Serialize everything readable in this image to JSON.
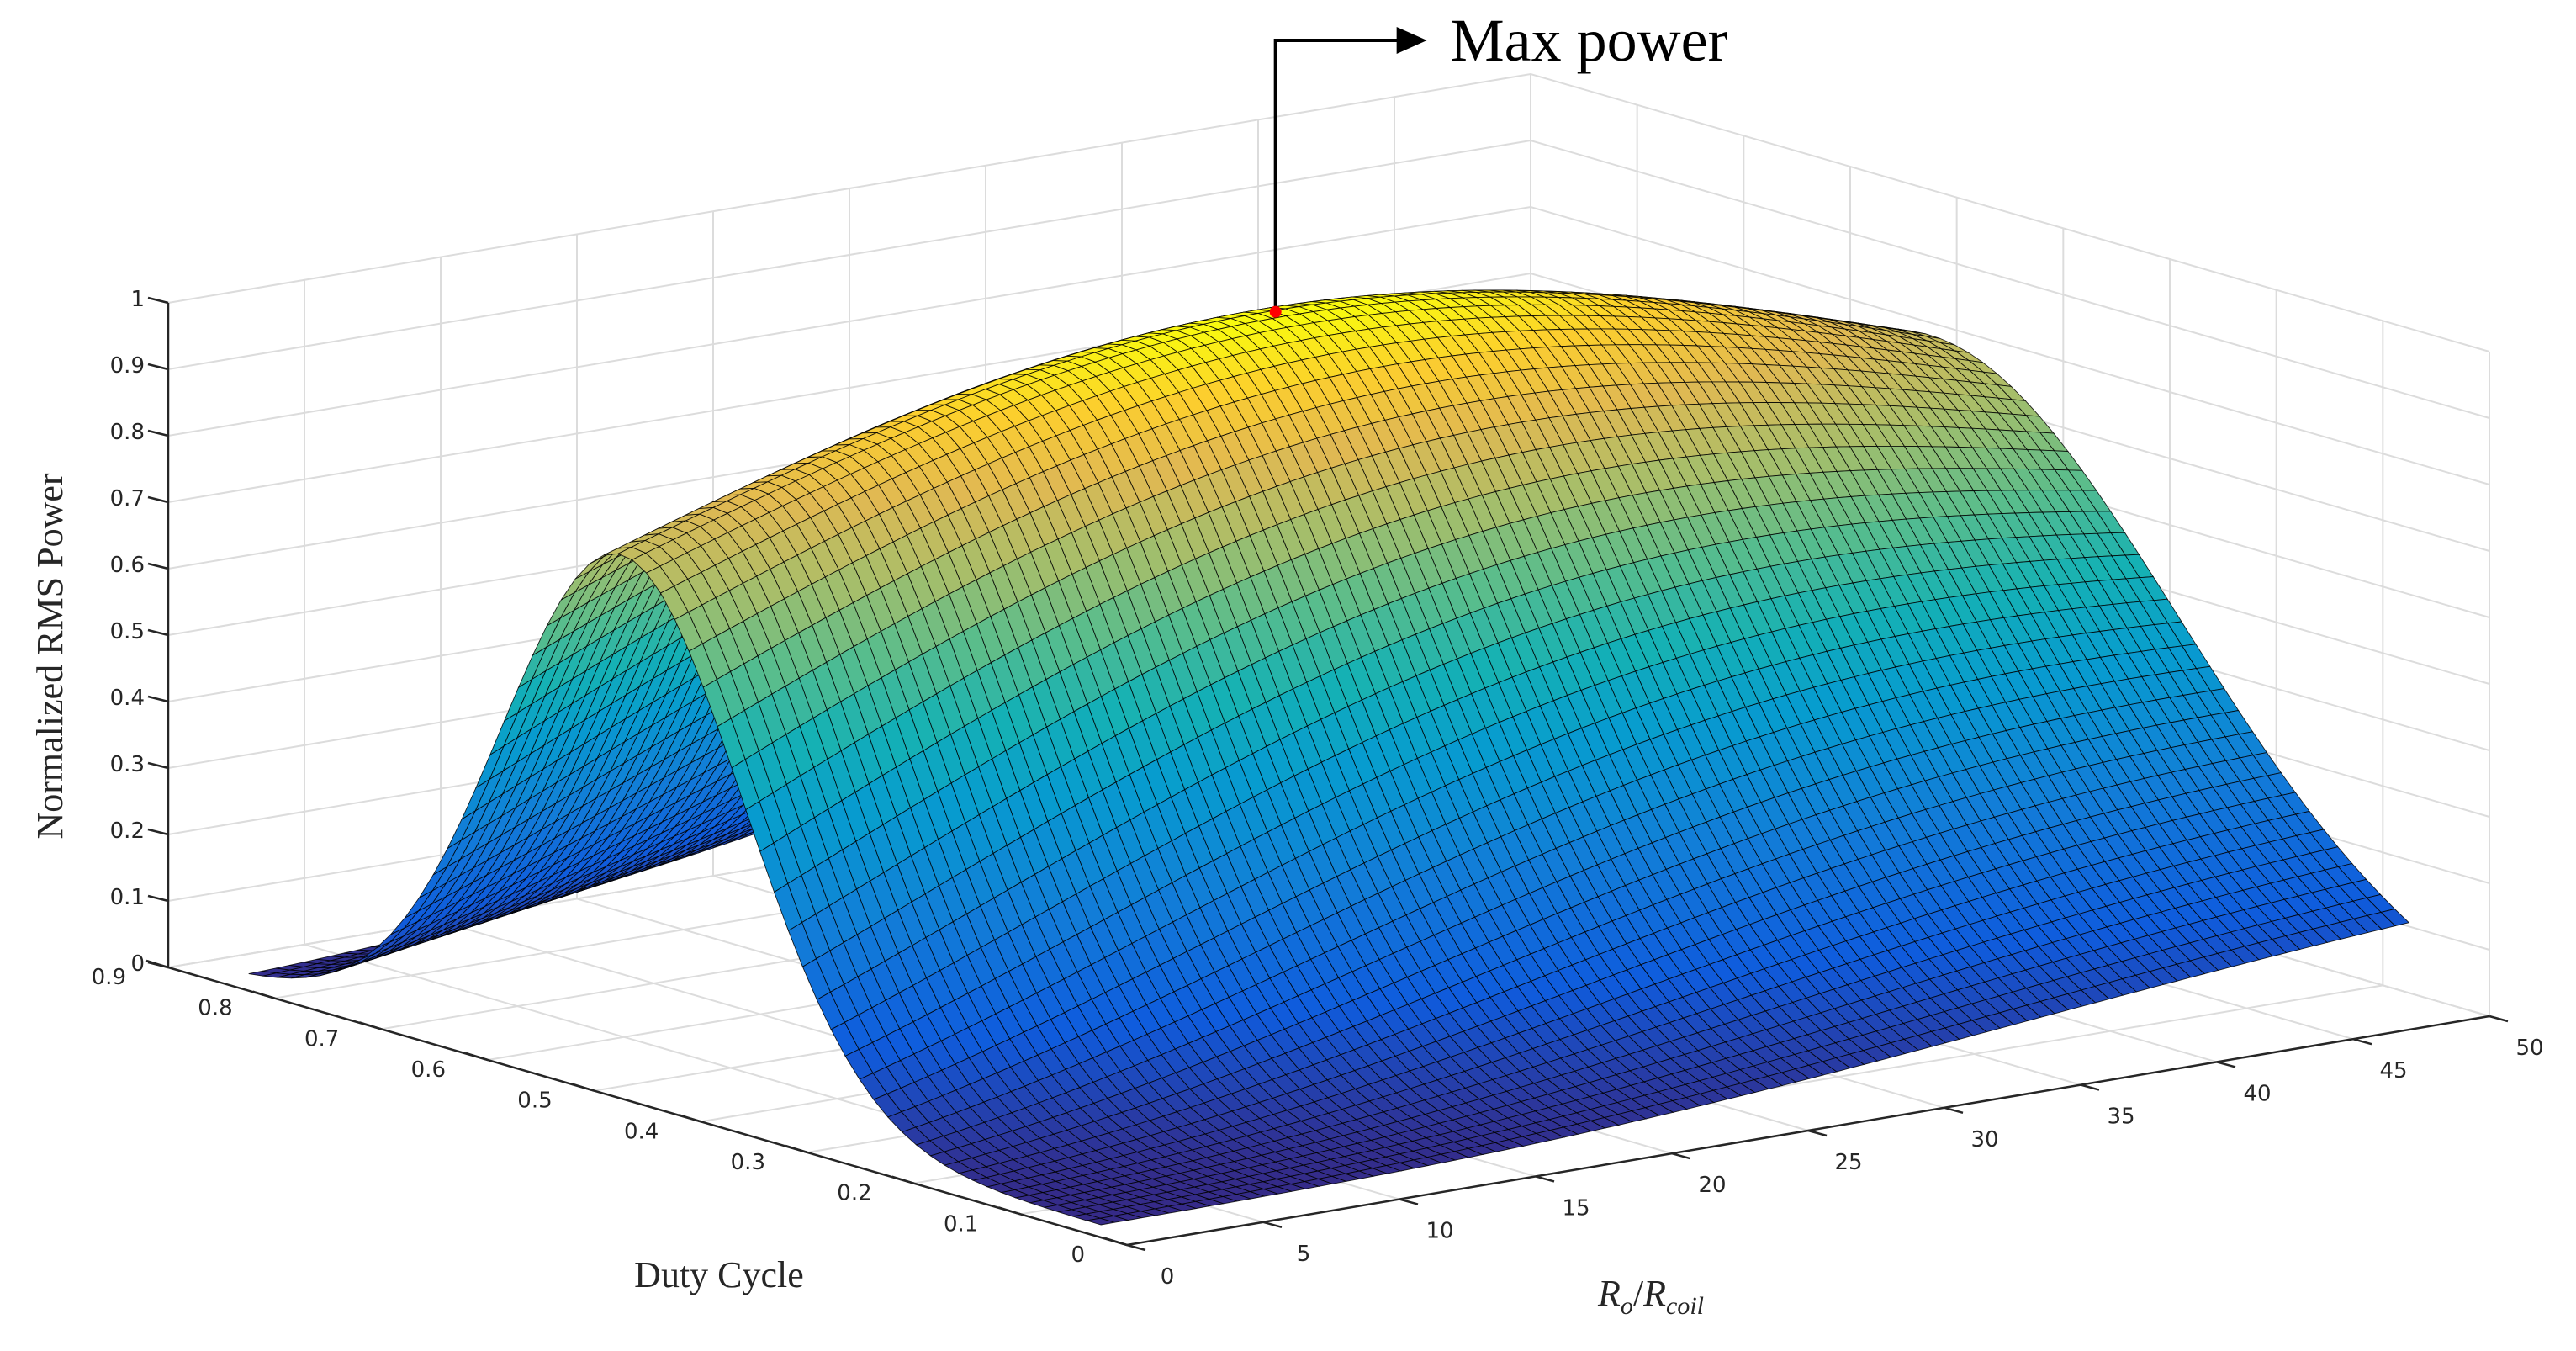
{
  "chart_data": {
    "type": "surface",
    "title": "",
    "x": {
      "label_base": "R",
      "label_base_sub": "o",
      "label_sep": "/",
      "label_base2": "R",
      "label_base2_sub": "coil",
      "range": [
        0,
        50
      ],
      "ticks": [
        "0",
        "5",
        "10",
        "15",
        "20",
        "25",
        "30",
        "35",
        "40",
        "45",
        "50"
      ]
    },
    "y": {
      "label": "Duty Cycle",
      "range": [
        0,
        0.9
      ],
      "ticks": [
        "0",
        "0.1",
        "0.2",
        "0.3",
        "0.4",
        "0.5",
        "0.6",
        "0.7",
        "0.8",
        "0.9"
      ]
    },
    "z": {
      "label": "Normalized RMS Power",
      "range": [
        0,
        1
      ],
      "ticks": [
        "0",
        "0.1",
        "0.2",
        "0.3",
        "0.4",
        "0.5",
        "0.6",
        "0.7",
        "0.8",
        "0.9",
        "1"
      ]
    },
    "surface": {
      "x_min": 1,
      "x_max": 49,
      "y_min": 0.05,
      "y_max": 0.85,
      "peak_duty": 0.5,
      "peak_power": 1.0,
      "colormap": "parula",
      "edge_color": "#000000"
    },
    "annotation": {
      "text": "Max power",
      "point": {
        "x": 25,
        "y": 0.5,
        "z": 1.0
      },
      "marker_color": "#ff0000"
    },
    "grid": true
  }
}
